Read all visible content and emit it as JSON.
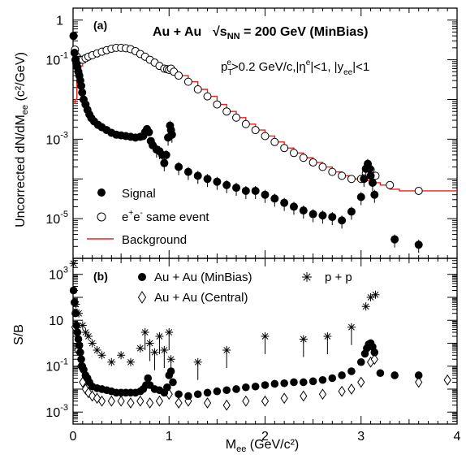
{
  "chart_data": [
    {
      "type": "scatter",
      "panel_label": "(a)",
      "title_main": "Au + Au",
      "title_energy_prefix": "√s",
      "title_energy_sub": "NN",
      "title_energy_value": " = 200 GeV (MinBias)",
      "cuts": {
        "p": "p",
        "p_sub": "T",
        "p_sup": "e",
        "p_rest": ">0.2 GeV/c,|η",
        "eta_sup": "e",
        "eta_rest": "|<1,  |y",
        "y_sub": "ee",
        "y_rest": "|<1"
      },
      "ylabel": "Uncorrected dN/dM",
      "ylabel_sub": "ee",
      "ylabel_unit": " (c²/GeV)",
      "yscale": "log",
      "ylim": [
        1e-06,
        2
      ],
      "xlim": [
        0,
        4
      ],
      "ytick_labels": [
        {
          "v": 1,
          "label": "1"
        },
        {
          "v": 0.1,
          "label": "10",
          "sup": "-1"
        },
        {
          "v": 0.001,
          "label": "10",
          "sup": "-3"
        },
        {
          "v": 1e-05,
          "label": "10",
          "sup": "-5"
        }
      ],
      "legend": {
        "signal": "Signal",
        "same_event_main": "e",
        "same_event_sup1": "+",
        "same_event_mid": "e",
        "same_event_sup2": "-",
        "same_event_rest": "  same event",
        "background": "Background"
      },
      "colors": {
        "background": "#e8201e",
        "marker": "#000000"
      },
      "series": [
        {
          "name": "Signal",
          "marker": "filled-circle",
          "x": [
            0.005,
            0.015,
            0.025,
            0.035,
            0.045,
            0.055,
            0.065,
            0.075,
            0.085,
            0.095,
            0.11,
            0.13,
            0.15,
            0.17,
            0.19,
            0.22,
            0.26,
            0.3,
            0.35,
            0.4,
            0.45,
            0.5,
            0.55,
            0.6,
            0.65,
            0.7,
            0.73,
            0.75,
            0.77,
            0.79,
            0.81,
            0.83,
            0.87,
            0.9,
            0.93,
            0.95,
            0.97,
            0.99,
            1.01,
            1.02,
            1.03,
            1.1,
            1.2,
            1.3,
            1.4,
            1.5,
            1.6,
            1.7,
            1.8,
            1.9,
            2.0,
            2.1,
            2.2,
            2.3,
            2.4,
            2.5,
            2.6,
            2.7,
            2.8,
            2.9,
            3.0,
            3.03,
            3.05,
            3.07,
            3.09,
            3.1,
            3.12,
            3.14,
            3.35,
            3.6
          ],
          "y": [
            0.4,
            0.15,
            0.1,
            0.08,
            0.065,
            0.05,
            0.04,
            0.03,
            0.022,
            0.015,
            0.01,
            0.0075,
            0.0055,
            0.0042,
            0.0034,
            0.0028,
            0.0023,
            0.002,
            0.0017,
            0.00145,
            0.0013,
            0.00125,
            0.0012,
            0.00115,
            0.0011,
            0.00115,
            0.0012,
            0.0015,
            0.0018,
            0.0015,
            0.0009,
            0.0007,
            0.00055,
            0.0005,
            0.0004,
            0.00025,
            0.0004,
            0.0011,
            0.0022,
            0.0017,
            0.0013,
            0.0002,
            0.00015,
            0.00012,
            0.0001,
            8.5e-05,
            7e-05,
            6e-05,
            5e-05,
            5e-05,
            4e-05,
            3.2e-05,
            2.5e-05,
            2e-05,
            1.6e-05,
            1.3e-05,
            1.2e-05,
            1.1e-05,
            9e-06,
            1.5e-05,
            3.5e-05,
            0.0001,
            0.00018,
            0.00024,
            0.00018,
            0.00012,
            8e-05,
            4e-05,
            3e-06,
            2.2e-06
          ]
        },
        {
          "name": "e+e- same event",
          "marker": "open-circle",
          "x": [
            0.005,
            0.02,
            0.04,
            0.06,
            0.08,
            0.1,
            0.13,
            0.16,
            0.2,
            0.25,
            0.3,
            0.35,
            0.4,
            0.45,
            0.5,
            0.55,
            0.6,
            0.65,
            0.7,
            0.75,
            0.8,
            0.85,
            0.9,
            0.95,
            0.98,
            1.0,
            1.02,
            1.05,
            1.1,
            1.2,
            1.3,
            1.4,
            1.5,
            1.6,
            1.7,
            1.8,
            1.9,
            2.0,
            2.1,
            2.2,
            2.3,
            2.4,
            2.5,
            2.6,
            2.7,
            2.8,
            2.9,
            3.0,
            3.05,
            3.1,
            3.15,
            3.3,
            3.6
          ],
          "y": [
            0.4,
            0.18,
            0.12,
            0.1,
            0.1,
            0.1,
            0.11,
            0.12,
            0.13,
            0.145,
            0.16,
            0.175,
            0.19,
            0.2,
            0.2,
            0.195,
            0.185,
            0.165,
            0.14,
            0.12,
            0.1,
            0.085,
            0.07,
            0.06,
            0.058,
            0.056,
            0.06,
            0.05,
            0.04,
            0.028,
            0.018,
            0.012,
            0.0075,
            0.005,
            0.0035,
            0.0024,
            0.0017,
            0.0012,
            0.00085,
            0.0006,
            0.00045,
            0.00034,
            0.00026,
            0.0002,
            0.00015,
            0.00012,
            0.0001,
            0.0001,
            0.00014,
            0.00017,
            0.00012,
            7e-05,
            5e-05
          ]
        },
        {
          "name": "Background",
          "marker": "line",
          "x": [
            0.005,
            0.02,
            0.04,
            0.06,
            0.08,
            0.1,
            0.13,
            0.16,
            0.2,
            0.25,
            0.3,
            0.35,
            0.4,
            0.45,
            0.5,
            0.55,
            0.6,
            0.65,
            0.7,
            0.75,
            0.8,
            0.85,
            0.9,
            0.95,
            1.0,
            1.05,
            1.1,
            1.2,
            1.3,
            1.4,
            1.5,
            1.6,
            1.7,
            1.8,
            1.9,
            2.0,
            2.1,
            2.2,
            2.3,
            2.4,
            2.5,
            2.6,
            2.7,
            2.8,
            2.9,
            3.0,
            3.1,
            3.2,
            3.3,
            3.4,
            3.5,
            3.6,
            4.0
          ],
          "y": [
            0.008,
            0.01,
            0.03,
            0.05,
            0.07,
            0.085,
            0.1,
            0.115,
            0.125,
            0.14,
            0.155,
            0.17,
            0.18,
            0.19,
            0.195,
            0.195,
            0.18,
            0.16,
            0.14,
            0.12,
            0.1,
            0.085,
            0.07,
            0.06,
            0.052,
            0.048,
            0.04,
            0.028,
            0.018,
            0.012,
            0.0075,
            0.005,
            0.0035,
            0.0024,
            0.0017,
            0.0012,
            0.00085,
            0.0006,
            0.00045,
            0.00034,
            0.00026,
            0.0002,
            0.00015,
            0.00012,
            0.0001,
            9e-05,
            8e-05,
            7e-05,
            5.5e-05,
            5e-05,
            5e-05,
            5e-05,
            5e-05
          ]
        }
      ]
    },
    {
      "type": "scatter",
      "panel_label": "(b)",
      "ylabel": "S/B",
      "xlabel": "M",
      "xlabel_sub": "ee",
      "xlabel_unit": " (GeV/c²)",
      "yscale": "log",
      "ylim": [
        0.0003,
        5000
      ],
      "xlim": [
        0,
        4
      ],
      "xticks": [
        0,
        1,
        2,
        3,
        4
      ],
      "xtick_labels": [
        "0",
        "1",
        "2",
        "3",
        "4"
      ],
      "ytick_labels": [
        {
          "v": 1000,
          "label": "10",
          "sup": "3"
        },
        {
          "v": 10,
          "label": "10"
        },
        {
          "v": 0.1,
          "label": "10",
          "sup": "-1"
        },
        {
          "v": 0.001,
          "label": "10",
          "sup": "-3"
        }
      ],
      "legend": {
        "minbias": "Au + Au (MinBias)",
        "central": "Au + Au (Central)",
        "pp": "p + p"
      },
      "series": [
        {
          "name": "Au + Au (MinBias)",
          "marker": "filled-circle",
          "x": [
            0.005,
            0.015,
            0.025,
            0.035,
            0.045,
            0.055,
            0.065,
            0.075,
            0.085,
            0.095,
            0.11,
            0.13,
            0.15,
            0.17,
            0.2,
            0.25,
            0.3,
            0.35,
            0.4,
            0.45,
            0.5,
            0.55,
            0.6,
            0.65,
            0.7,
            0.73,
            0.76,
            0.78,
            0.8,
            0.85,
            0.9,
            0.95,
            0.98,
            1.0,
            1.02,
            1.04,
            1.1,
            1.2,
            1.3,
            1.4,
            1.5,
            1.6,
            1.7,
            1.8,
            1.9,
            2.0,
            2.1,
            2.2,
            2.3,
            2.4,
            2.5,
            2.6,
            2.7,
            2.8,
            2.9,
            3.0,
            3.04,
            3.06,
            3.08,
            3.1,
            3.12,
            3.14,
            3.2,
            3.35,
            3.6
          ],
          "y": [
            200,
            60,
            20,
            6,
            3,
            1.5,
            0.8,
            0.4,
            0.2,
            0.1,
            0.07,
            0.04,
            0.03,
            0.02,
            0.013,
            0.011,
            0.01,
            0.009,
            0.008,
            0.007,
            0.007,
            0.007,
            0.007,
            0.007,
            0.008,
            0.01,
            0.015,
            0.03,
            0.015,
            0.01,
            0.009,
            0.007,
            0.012,
            0.04,
            0.06,
            0.02,
            0.006,
            0.005,
            0.006,
            0.007,
            0.008,
            0.009,
            0.01,
            0.012,
            0.013,
            0.015,
            0.017,
            0.018,
            0.02,
            0.02,
            0.022,
            0.025,
            0.03,
            0.04,
            0.06,
            0.15,
            0.35,
            0.6,
            0.9,
            1.0,
            0.7,
            0.4,
            0.05,
            0.04,
            0.04
          ]
        },
        {
          "name": "Au + Au (Central)",
          "marker": "open-diamond",
          "x": [
            0.02,
            0.05,
            0.08,
            0.1,
            0.13,
            0.16,
            0.2,
            0.25,
            0.3,
            0.4,
            0.5,
            0.6,
            0.7,
            0.8,
            0.9,
            1.0,
            1.1,
            1.2,
            1.4,
            1.6,
            1.8,
            2.0,
            2.2,
            2.4,
            2.6,
            2.8,
            2.9,
            3.0,
            3.1,
            3.14,
            3.6,
            3.9
          ],
          "y": [
            5,
            0.5,
            0.1,
            0.02,
            0.01,
            0.007,
            0.005,
            0.004,
            0.003,
            0.003,
            0.003,
            0.0025,
            0.003,
            0.0025,
            0.003,
            0.006,
            0.0025,
            0.003,
            0.0025,
            0.002,
            0.003,
            0.003,
            0.004,
            0.005,
            0.006,
            0.008,
            0.01,
            0.02,
            0.15,
            0.2,
            0.02,
            0.025
          ]
        },
        {
          "name": "p + p",
          "marker": "star",
          "x": [
            0.005,
            0.03,
            0.06,
            0.1,
            0.13,
            0.16,
            0.2,
            0.25,
            0.3,
            0.4,
            0.5,
            0.6,
            0.7,
            0.75,
            0.8,
            0.85,
            0.9,
            0.95,
            1.0,
            1.02,
            1.3,
            1.6,
            2.0,
            2.4,
            2.65,
            2.9,
            3.05,
            3.1,
            3.15
          ],
          "y": [
            3000,
            50,
            20,
            6,
            3,
            2,
            1,
            0.5,
            0.3,
            0.15,
            0.3,
            0.15,
            0.6,
            3,
            1,
            0.4,
            2,
            0.5,
            3,
            0.2,
            0.15,
            0.5,
            2,
            1.5,
            2,
            5,
            40,
            100,
            130
          ]
        }
      ]
    }
  ]
}
